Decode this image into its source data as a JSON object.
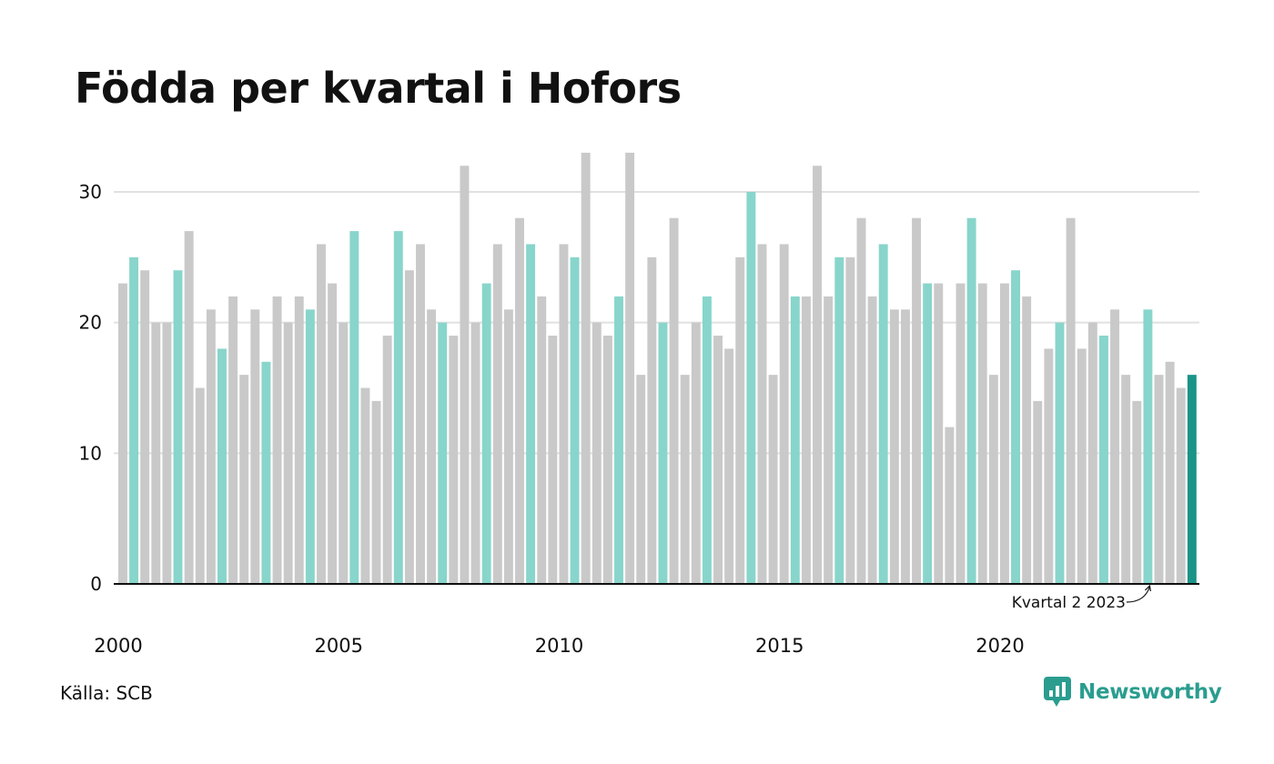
{
  "chart_data": {
    "type": "bar",
    "title": "Födda per kvartal i Hofors",
    "xlabel": "",
    "ylabel": "",
    "ylim": [
      0,
      33
    ],
    "y_ticks": [
      0,
      10,
      20,
      30
    ],
    "x_ticks": [
      "2000",
      "2005",
      "2010",
      "2015",
      "2020"
    ],
    "grid": true,
    "start_year": 2000,
    "values": [
      23,
      25,
      24,
      20,
      20,
      24,
      27,
      15,
      21,
      18,
      22,
      16,
      21,
      17,
      22,
      20,
      22,
      21,
      26,
      23,
      20,
      27,
      15,
      14,
      19,
      27,
      24,
      26,
      21,
      20,
      19,
      32,
      20,
      23,
      26,
      21,
      28,
      26,
      22,
      19,
      26,
      25,
      33,
      20,
      19,
      22,
      33,
      16,
      25,
      20,
      28,
      16,
      20,
      22,
      19,
      18,
      25,
      30,
      26,
      16,
      26,
      22,
      22,
      32,
      22,
      25,
      25,
      28,
      22,
      26,
      21,
      21,
      28,
      23,
      23,
      12,
      23,
      28,
      23,
      16,
      23,
      24,
      22,
      14,
      18,
      20,
      28,
      18,
      20,
      19,
      21,
      16,
      14,
      21,
      16,
      17,
      15,
      16
    ],
    "highlight_quarter": 2,
    "colors": {
      "default": "#c9c9c9",
      "highlight": "#88d5cb",
      "latest": "#1b9488",
      "grid": "#e0e0e0",
      "axis": "#111111"
    },
    "annotation": "Kvartal 2 2023"
  },
  "source": "Källa: SCB",
  "brand": {
    "name": "Newsworthy",
    "icon": "newsworthy-logo-icon",
    "color": "#2a9d8f"
  }
}
